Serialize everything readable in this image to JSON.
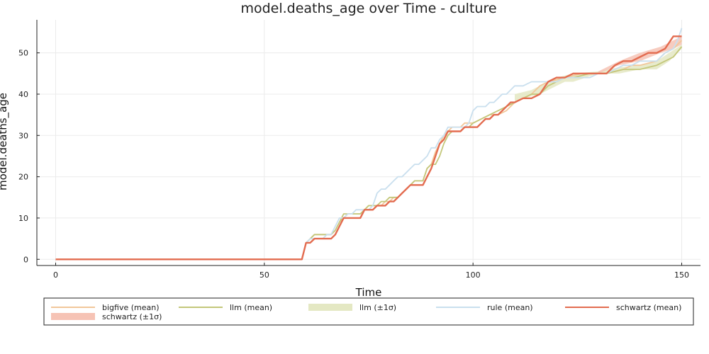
{
  "chart_data": {
    "type": "line",
    "title": "model.deaths_age over Time - culture",
    "xlabel": "Time",
    "ylabel": "model.deaths_age",
    "xlim": [
      -4.5,
      154.5
    ],
    "ylim": [
      -1.5,
      58
    ],
    "xticks": [
      0,
      50,
      100,
      150
    ],
    "yticks": [
      0,
      10,
      20,
      30,
      40,
      50
    ],
    "grid": true,
    "legend_position": "bottom",
    "colors": {
      "bigfive": "#f2c79a",
      "llm": "#c3c77a",
      "llm_band": "#e4e8c3",
      "rule": "#c9dfee",
      "schwartz": "#e36c50",
      "schwartz_band": "#f6c3b5"
    },
    "legend": [
      {
        "key": "bigfive_mean",
        "label": "bigfive (mean)",
        "kind": "line",
        "color": "#f2c79a"
      },
      {
        "key": "llm_mean",
        "label": "llm (mean)",
        "kind": "line",
        "color": "#c3c77a"
      },
      {
        "key": "llm_band",
        "label": "llm (±1σ)",
        "kind": "band",
        "color": "#e4e8c3"
      },
      {
        "key": "rule_mean",
        "label": "rule (mean)",
        "kind": "line",
        "color": "#c9dfee"
      },
      {
        "key": "schwartz_mean",
        "label": "schwartz (mean)",
        "kind": "line",
        "color": "#e36c50"
      },
      {
        "key": "schwartz_band",
        "label": "schwartz (±1σ)",
        "kind": "band",
        "color": "#f6c3b5"
      }
    ],
    "bands": [
      {
        "name": "llm (±1σ)",
        "color": "#e4e8c3",
        "x": [
          110,
          112,
          114,
          116,
          118,
          120,
          122,
          124,
          130,
          135,
          140,
          144,
          147,
          150
        ],
        "lower": [
          38,
          39,
          39.5,
          40,
          41,
          42,
          43,
          43,
          45,
          45,
          46,
          46,
          48,
          51
        ],
        "upper": [
          40,
          40.5,
          41,
          42,
          43,
          44,
          44.5,
          45,
          45.5,
          46.5,
          47,
          48,
          50,
          52
        ]
      },
      {
        "name": "schwartz (±1σ)",
        "color": "#f6c3b5",
        "x": [
          130,
          135,
          140,
          145,
          148,
          150
        ],
        "lower": [
          45,
          47,
          48,
          50,
          51,
          52
        ],
        "upper": [
          45.5,
          48,
          50,
          51.5,
          53,
          54
        ]
      }
    ],
    "series": [
      {
        "name": "bigfive (mean)",
        "color": "#f2c79a",
        "width": 1.8,
        "x": [
          0,
          59,
          60,
          61,
          62,
          63,
          64,
          65,
          66,
          67,
          68,
          69,
          70,
          71,
          72,
          73,
          74,
          75,
          76,
          77,
          78,
          79,
          80,
          81,
          82,
          83,
          84,
          85,
          86,
          87,
          88,
          89,
          90,
          91,
          92,
          93,
          94,
          95,
          96,
          97,
          98,
          99,
          100,
          102,
          104,
          106,
          108,
          110,
          112,
          114,
          116,
          118,
          120,
          122,
          124,
          126,
          128,
          130,
          132,
          134,
          136,
          138,
          140,
          142,
          144,
          146,
          148,
          150
        ],
        "y": [
          0,
          0,
          4,
          5,
          6,
          6,
          6,
          6,
          6,
          7,
          9,
          10,
          11,
          11,
          11,
          11,
          12,
          13,
          13,
          13,
          13,
          14,
          14,
          15,
          15,
          16,
          17,
          18,
          19,
          19,
          19,
          22,
          23,
          26,
          28,
          30,
          31,
          32,
          32,
          32,
          33,
          33,
          33,
          34,
          35,
          35,
          36,
          38,
          39,
          40,
          42,
          43,
          43.5,
          44,
          44.5,
          45,
          45,
          45,
          45,
          45.5,
          46,
          47,
          47,
          47.5,
          48,
          50,
          51,
          53
        ]
      },
      {
        "name": "llm (mean)",
        "color": "#c3c77a",
        "width": 1.8,
        "x": [
          0,
          59,
          60,
          61,
          62,
          63,
          64,
          65,
          66,
          67,
          68,
          69,
          70,
          71,
          72,
          73,
          74,
          75,
          76,
          77,
          78,
          79,
          80,
          81,
          82,
          83,
          84,
          85,
          86,
          87,
          88,
          89,
          90,
          91,
          92,
          93,
          94,
          95,
          96,
          97,
          98,
          99,
          100,
          102,
          104,
          106,
          108,
          110,
          112,
          114,
          116,
          118,
          120,
          122,
          124,
          126,
          128,
          130,
          132,
          134,
          136,
          138,
          140,
          142,
          144,
          146,
          148,
          150
        ],
        "y": [
          0,
          0,
          4,
          5,
          6,
          6,
          6,
          6,
          6,
          7,
          9,
          11,
          11,
          11,
          11,
          11,
          12,
          13,
          13,
          13,
          14,
          14,
          15,
          15,
          15,
          16,
          17,
          18,
          19,
          19,
          19,
          22,
          23,
          23,
          25,
          28,
          30,
          31,
          31,
          31,
          32,
          32,
          33,
          34,
          35,
          36,
          37,
          38,
          39,
          40,
          40,
          42,
          43,
          44,
          44,
          44.5,
          45,
          45,
          45,
          45.5,
          46,
          46,
          46,
          46.5,
          47,
          48,
          49,
          51.5
        ]
      },
      {
        "name": "rule (mean)",
        "color": "#c9dfee",
        "width": 1.8,
        "x": [
          0,
          59,
          60,
          61,
          62,
          63,
          64,
          65,
          66,
          67,
          68,
          69,
          70,
          71,
          72,
          73,
          74,
          75,
          76,
          77,
          78,
          79,
          80,
          81,
          82,
          83,
          84,
          85,
          86,
          87,
          88,
          89,
          90,
          91,
          92,
          93,
          94,
          95,
          96,
          97,
          98,
          99,
          100,
          101,
          102,
          103,
          104,
          105,
          106,
          107,
          108,
          109,
          110,
          112,
          114,
          116,
          118,
          120,
          122,
          124,
          126,
          128,
          130,
          132,
          134,
          136,
          138,
          140,
          142,
          144,
          146,
          148,
          149,
          150
        ],
        "y": [
          0,
          0,
          4,
          5,
          5,
          5,
          5,
          6,
          6,
          8,
          10,
          10,
          11,
          11,
          12,
          12,
          12,
          12,
          13,
          16,
          17,
          17,
          18,
          19,
          20,
          20,
          21,
          22,
          23,
          23,
          24,
          25,
          27,
          27,
          29,
          30,
          32,
          32,
          32,
          32,
          32,
          33,
          36,
          37,
          37,
          37,
          38,
          38,
          39,
          40,
          40,
          41,
          42,
          42,
          43,
          43,
          43,
          43,
          44,
          44,
          44,
          44,
          45,
          45,
          46,
          47,
          47,
          48,
          48,
          48,
          50,
          51,
          53,
          56
        ]
      },
      {
        "name": "schwartz (mean)",
        "color": "#e36c50",
        "width": 2.4,
        "x": [
          0,
          59,
          60,
          61,
          62,
          63,
          64,
          65,
          66,
          67,
          68,
          69,
          70,
          71,
          72,
          73,
          74,
          75,
          76,
          77,
          78,
          79,
          80,
          81,
          82,
          83,
          84,
          85,
          86,
          87,
          88,
          89,
          90,
          91,
          92,
          93,
          94,
          95,
          96,
          97,
          98,
          99,
          100,
          101,
          102,
          103,
          104,
          105,
          106,
          107,
          108,
          109,
          110,
          112,
          114,
          116,
          118,
          120,
          122,
          124,
          126,
          128,
          130,
          132,
          133,
          134,
          136,
          138,
          140,
          142,
          144,
          146,
          148,
          150
        ],
        "y": [
          0,
          0,
          4,
          4,
          5,
          5,
          5,
          5,
          5,
          6,
          8,
          10,
          10,
          10,
          10,
          10,
          12,
          12,
          12,
          13,
          13,
          13,
          14,
          14,
          15,
          16,
          17,
          18,
          18,
          18,
          18,
          20,
          22,
          25,
          28,
          29,
          31,
          31,
          31,
          31,
          32,
          32,
          32,
          32,
          33,
          34,
          34,
          35,
          35,
          36,
          37,
          38,
          38,
          39,
          39,
          40,
          43,
          44,
          44,
          45,
          45,
          45,
          45,
          45,
          46,
          47,
          48,
          48,
          49,
          50,
          50,
          51,
          54,
          54
        ]
      }
    ]
  }
}
